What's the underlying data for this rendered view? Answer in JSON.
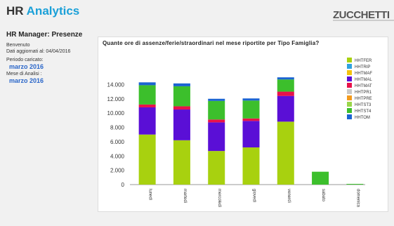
{
  "header": {
    "title_a": "HR",
    "title_b": "Analytics",
    "logo": "ZUCCHETTI"
  },
  "sidebar": {
    "title": "HR Manager: Presenze",
    "welcome": "Benvenuto",
    "updated": "Dati aggiornati al: 04/04/2016",
    "period_label": "Periodo caricato:",
    "period_value": "marzo 2016",
    "month_label": "Mese di Analisi :",
    "month_value": "marzo 2016"
  },
  "chart_data": {
    "type": "bar",
    "stacked": true,
    "title": "Quante ore di assenze/ferie/straordinari nel mese riportite per Tipo Famiglia?",
    "categories": [
      "lunedì",
      "martedì",
      "mercoledì",
      "giovedì",
      "venerdì",
      "sabato",
      "domenica"
    ],
    "ylim": [
      0,
      16000
    ],
    "yticks": [
      "0",
      "2.000",
      "4.000",
      "6.000",
      "8.000",
      "10.000",
      "12.000",
      "14.000"
    ],
    "ytick_values": [
      0,
      2000,
      4000,
      6000,
      8000,
      10000,
      12000,
      14000
    ],
    "legend_position": "right",
    "grid": false,
    "series": [
      {
        "name": "HHTFER",
        "color": "#a8d10f",
        "values": [
          7000,
          6200,
          4700,
          5200,
          8800,
          0,
          0
        ]
      },
      {
        "name": "HHTRIP",
        "color": "#2fa3e0",
        "values": [
          0,
          0,
          0,
          0,
          0,
          0,
          0
        ]
      },
      {
        "name": "HHTMAF",
        "color": "#f4c20d",
        "values": [
          0,
          0,
          0,
          0,
          0,
          0,
          0
        ]
      },
      {
        "name": "HHTMAL",
        "color": "#5a0fd6",
        "values": [
          3800,
          4300,
          4000,
          3700,
          3600,
          0,
          0
        ]
      },
      {
        "name": "HHTMAT",
        "color": "#e8114a",
        "values": [
          400,
          450,
          400,
          350,
          600,
          0,
          0
        ]
      },
      {
        "name": "HHTPR1",
        "color": "#c8c8c8",
        "values": [
          0,
          0,
          0,
          0,
          0,
          0,
          0
        ]
      },
      {
        "name": "HHTPRE",
        "color": "#f39a1d",
        "values": [
          0,
          0,
          0,
          0,
          0,
          0,
          0
        ]
      },
      {
        "name": "HHTST3",
        "color": "#9ad64a",
        "values": [
          0,
          0,
          0,
          0,
          0,
          0,
          0
        ]
      },
      {
        "name": "HHTST4",
        "color": "#3cbf2c",
        "values": [
          2700,
          2800,
          2600,
          2500,
          1700,
          1800,
          100
        ]
      },
      {
        "name": "HHTOM",
        "color": "#1b64d1",
        "values": [
          400,
          400,
          300,
          300,
          300,
          0,
          0
        ]
      }
    ]
  }
}
